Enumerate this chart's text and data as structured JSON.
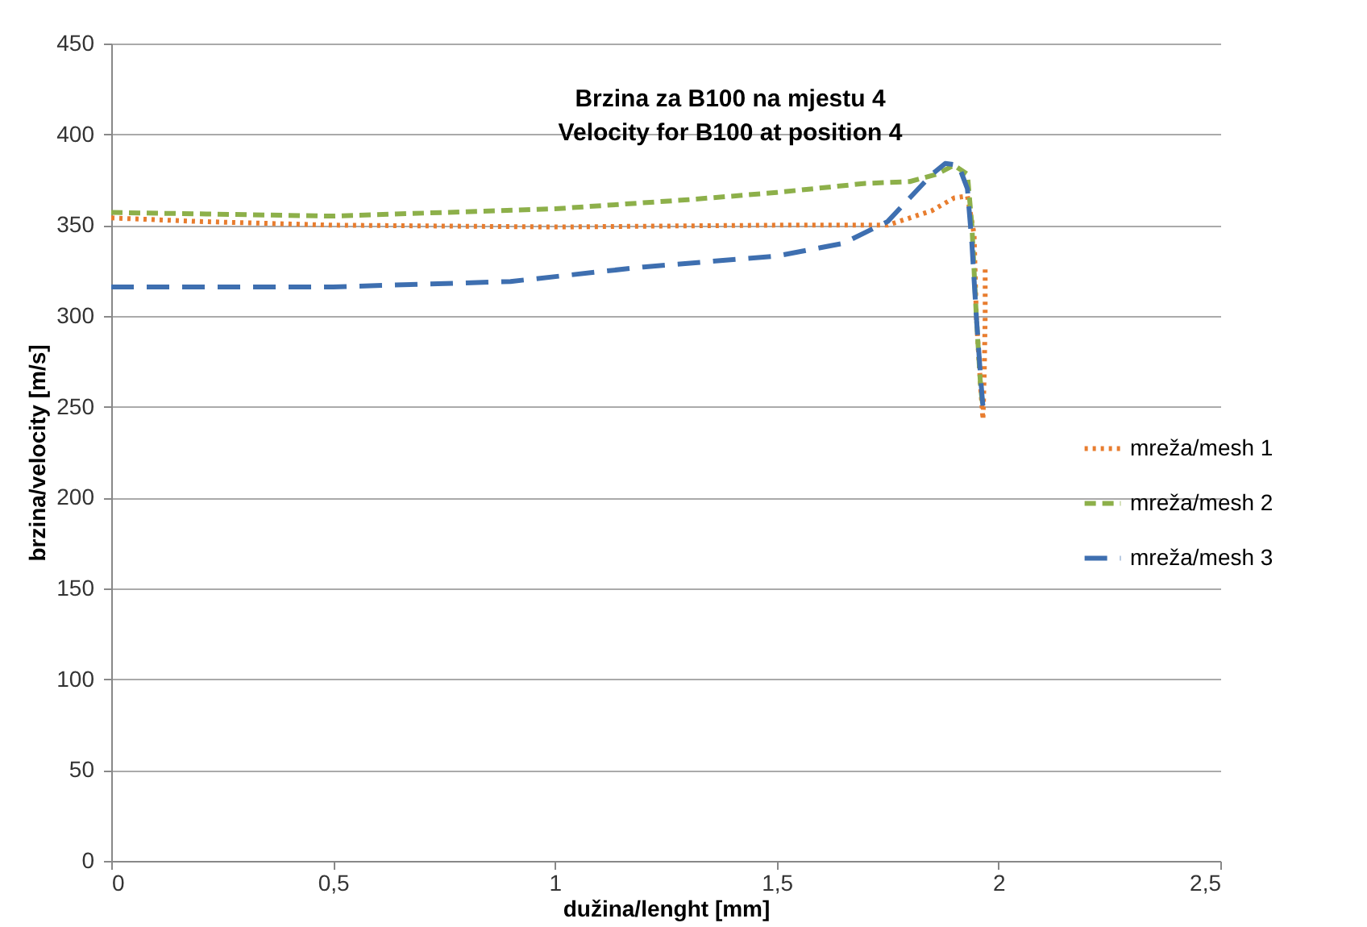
{
  "chart_data": {
    "type": "line",
    "title": "Brzina za B100 na mjestu 4\nVelocity for B100 at position 4",
    "xlabel": "dužina/lenght [mm]",
    "ylabel": "brzina/velocity  [m/s]",
    "xlim": [
      0,
      2.5
    ],
    "xticks": [
      0,
      {
        "value": 0.5,
        "label": "0,5"
      },
      1,
      {
        "value": 1.5,
        "label": "1,5"
      },
      2,
      {
        "value": 2.5,
        "label": "2,5"
      }
    ],
    "ylim": [
      0,
      450
    ],
    "yticks": [
      0,
      50,
      100,
      150,
      200,
      250,
      300,
      350,
      400,
      450
    ],
    "grid": "y",
    "legend": "right",
    "marker": "none",
    "series": [
      {
        "name": "mreža/mesh 1",
        "color": "#e87d2f",
        "line_style": "dotted",
        "x": [
          0,
          0.2,
          0.5,
          1,
          1.5,
          1.75,
          1.85,
          1.9,
          1.93,
          1.945,
          1.95,
          1.96,
          1.965,
          1.968,
          1.97,
          1.97
        ],
        "values": [
          354,
          352,
          350,
          349,
          350,
          350,
          358,
          365,
          366,
          345,
          300,
          260,
          243,
          270,
          300,
          328
        ]
      },
      {
        "name": "mreža/mesh 2",
        "color": "#8db04a",
        "line_style": "dashed",
        "x": [
          0,
          0.5,
          1,
          1.3,
          1.5,
          1.7,
          1.8,
          1.86,
          1.9,
          1.93,
          1.94,
          1.95,
          1.96,
          1.965
        ],
        "values": [
          357,
          355,
          359,
          364,
          368,
          373,
          374,
          378,
          383,
          378,
          350,
          300,
          260,
          250
        ]
      },
      {
        "name": "mreža/mesh 3",
        "color": "#3e6fb0",
        "line_style": "longdash",
        "x": [
          0,
          0.5,
          0.9,
          1.2,
          1.5,
          1.65,
          1.75,
          1.8,
          1.85,
          1.88,
          1.91,
          1.93,
          1.94,
          1.95,
          1.96,
          1.965
        ],
        "values": [
          316,
          316,
          319,
          327,
          333,
          340,
          352,
          365,
          378,
          384,
          383,
          370,
          340,
          300,
          265,
          250
        ]
      }
    ]
  }
}
